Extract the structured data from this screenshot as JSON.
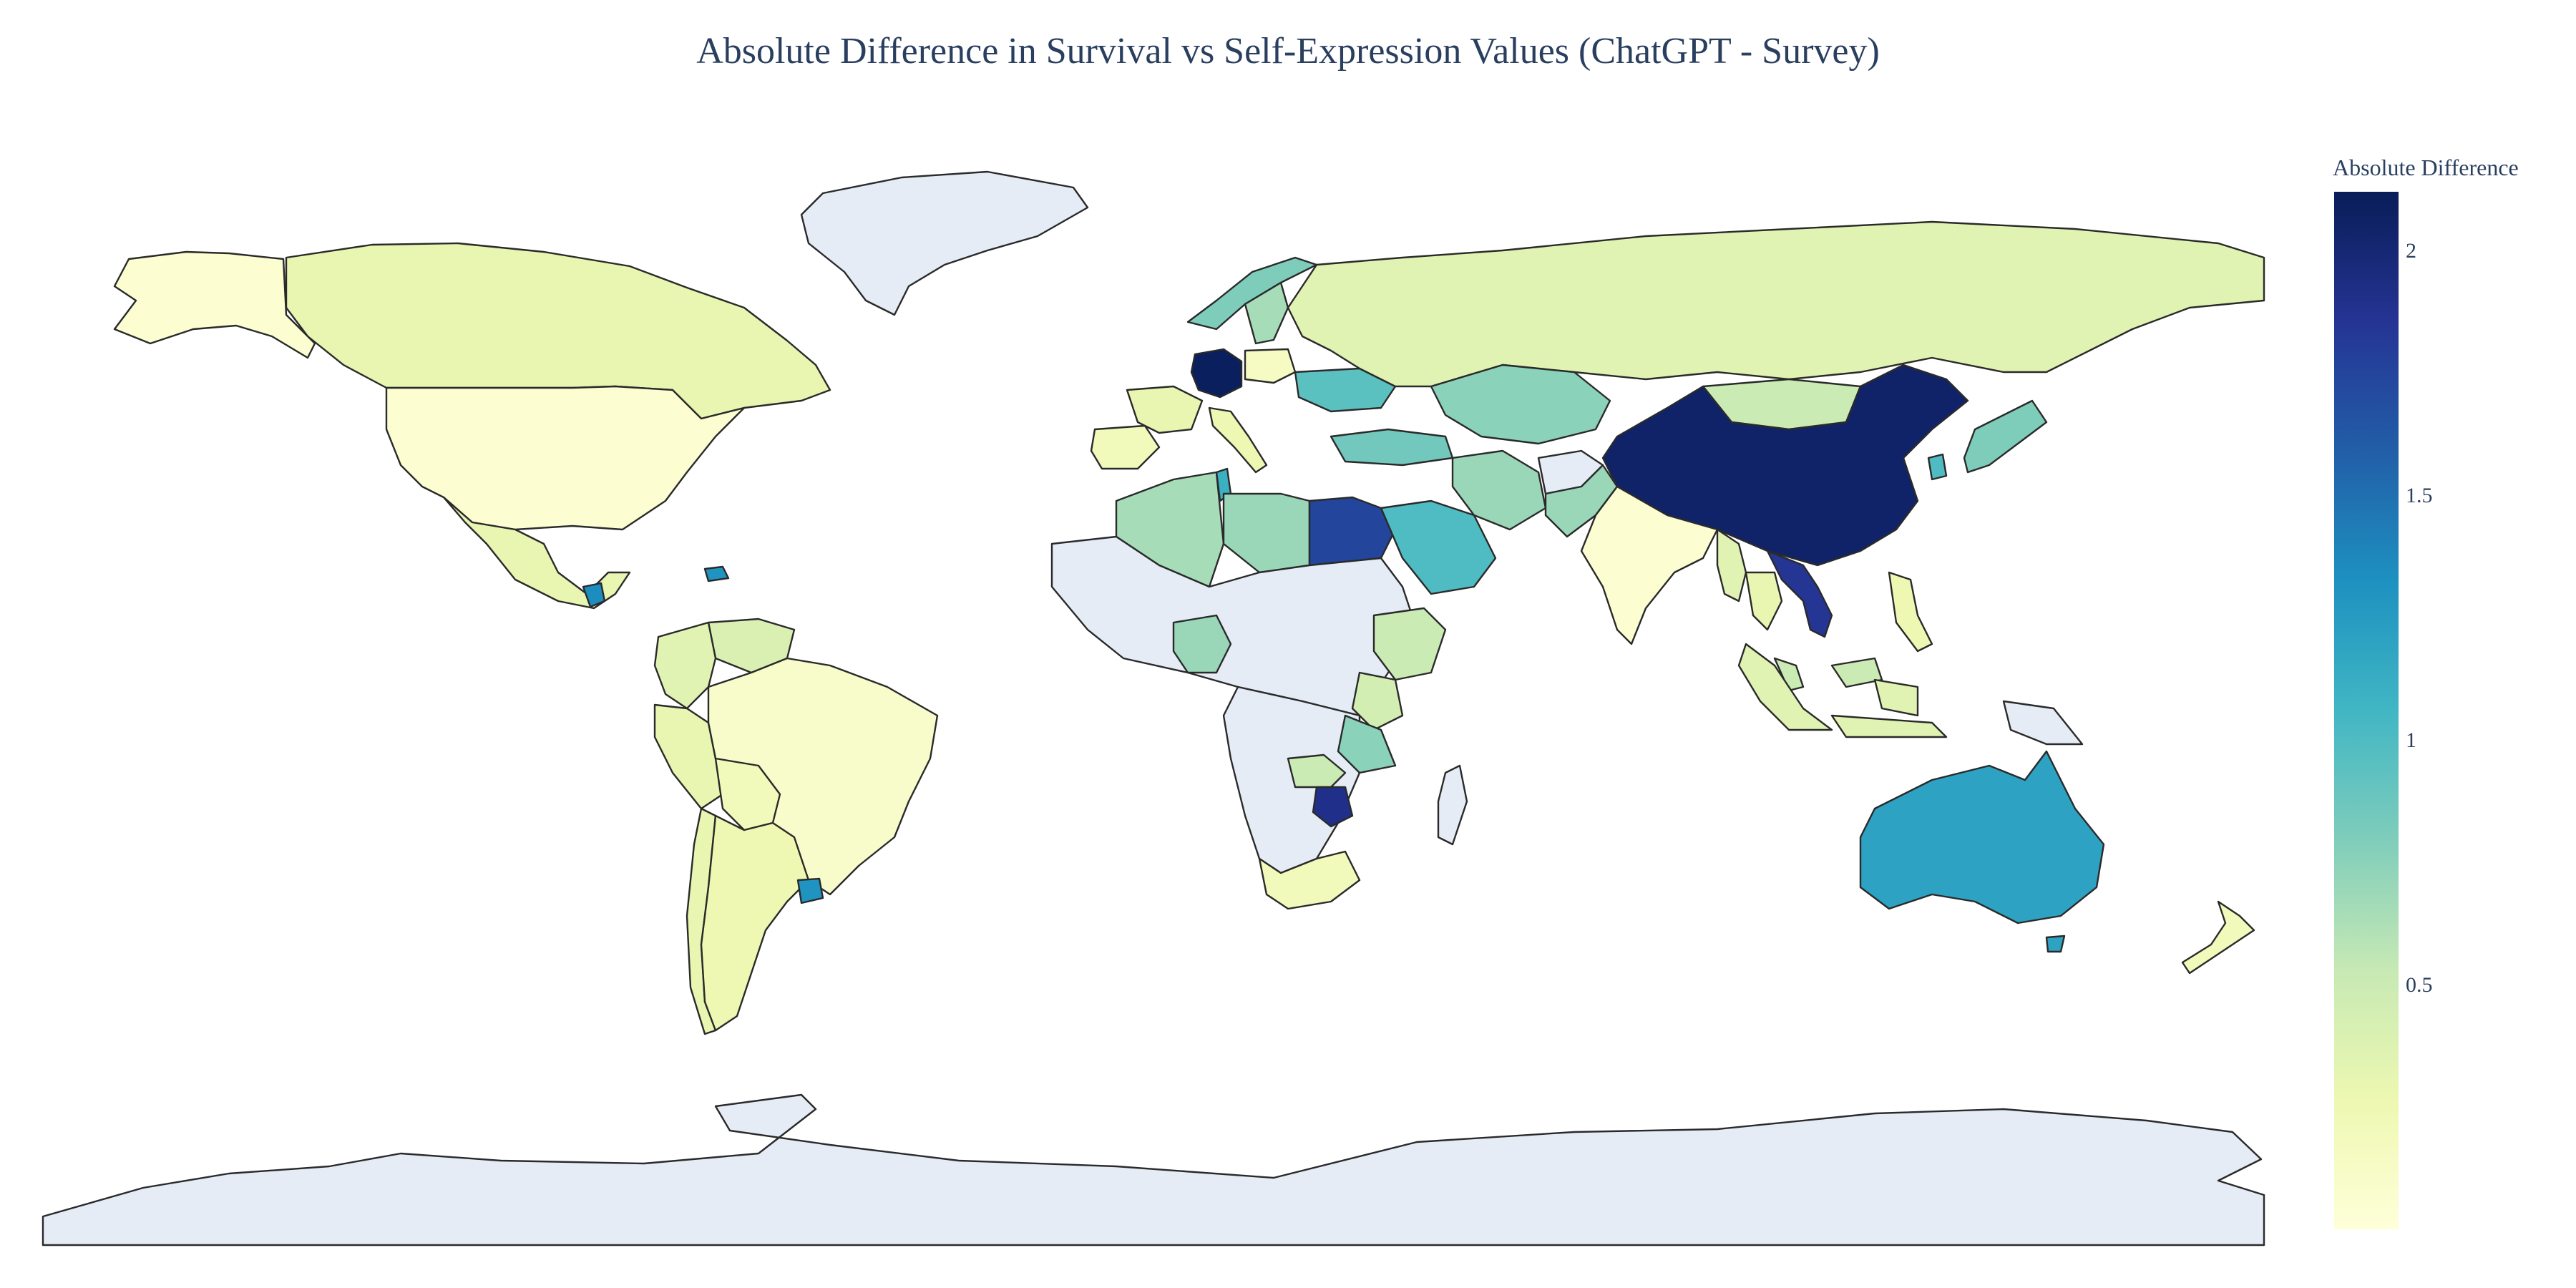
{
  "title": "Absolute Difference in Survival vs Self-Expression Values (ChatGPT - Survey)",
  "colorbar": {
    "title": "Absolute Difference",
    "min": 0.0,
    "max": 2.12,
    "ticks": [
      {
        "value": 0.5,
        "label": "0.5"
      },
      {
        "value": 1,
        "label": "1"
      },
      {
        "value": 1.5,
        "label": "1.5"
      },
      {
        "value": 2,
        "label": "2"
      }
    ],
    "scale_colors": [
      "#ffffd9",
      "#edf8b1",
      "#c7e9b4",
      "#7fcdbb",
      "#41b6c4",
      "#1d91c0",
      "#225ea8",
      "#253494",
      "#081d58"
    ],
    "no_data_color": "#e5ecf6"
  },
  "chart_data": {
    "type": "choropleth",
    "title": "Absolute Difference in Survival vs Self-Expression Values (ChatGPT - Survey)",
    "colorscale": "YlGnBu",
    "range": [
      0,
      2.12
    ],
    "no_data_color": "#e5ecf6",
    "countries": [
      {
        "name": "Germany",
        "value": 2.1
      },
      {
        "name": "China",
        "value": 2.05
      },
      {
        "name": "Zimbabwe",
        "value": 1.9
      },
      {
        "name": "Vietnam",
        "value": 1.85
      },
      {
        "name": "Egypt",
        "value": 1.75
      },
      {
        "name": "Uruguay",
        "value": 1.3
      },
      {
        "name": "Guatemala",
        "value": 1.35
      },
      {
        "name": "Dominican Republic",
        "value": 1.3
      },
      {
        "name": "Australia",
        "value": 1.2
      },
      {
        "name": "Tunisia",
        "value": 1.1
      },
      {
        "name": "Saudi Arabia",
        "value": 1.0
      },
      {
        "name": "South Korea",
        "value": 1.0
      },
      {
        "name": "Ukraine",
        "value": 0.95
      },
      {
        "name": "Turkey",
        "value": 0.85
      },
      {
        "name": "Japan",
        "value": 0.8
      },
      {
        "name": "Iran",
        "value": 0.7
      },
      {
        "name": "Kazakhstan",
        "value": 0.75
      },
      {
        "name": "Algeria",
        "value": 0.65
      },
      {
        "name": "Libya",
        "value": 0.7
      },
      {
        "name": "Nigeria",
        "value": 0.7
      },
      {
        "name": "Tanzania",
        "value": 0.75
      },
      {
        "name": "Norway",
        "value": 0.8
      },
      {
        "name": "Sweden",
        "value": 0.65
      },
      {
        "name": "Mongolia",
        "value": 0.5
      },
      {
        "name": "Ethiopia",
        "value": 0.5
      },
      {
        "name": "Kenya",
        "value": 0.45
      },
      {
        "name": "Zambia",
        "value": 0.5
      },
      {
        "name": "Russia",
        "value": 0.35
      },
      {
        "name": "Canada",
        "value": 0.3
      },
      {
        "name": "Mexico",
        "value": 0.3
      },
      {
        "name": "Colombia",
        "value": 0.35
      },
      {
        "name": "Peru",
        "value": 0.3
      },
      {
        "name": "Venezuela",
        "value": 0.4
      },
      {
        "name": "Argentina",
        "value": 0.25
      },
      {
        "name": "Chile",
        "value": 0.3
      },
      {
        "name": "Bolivia",
        "value": 0.2
      },
      {
        "name": "France",
        "value": 0.3
      },
      {
        "name": "Spain",
        "value": 0.2
      },
      {
        "name": "Italy",
        "value": 0.25
      },
      {
        "name": "Poland",
        "value": 0.15
      },
      {
        "name": "Indonesia",
        "value": 0.35
      },
      {
        "name": "Philippines",
        "value": 0.25
      },
      {
        "name": "Malaysia",
        "value": 0.5
      },
      {
        "name": "Thailand",
        "value": 0.3
      },
      {
        "name": "Myanmar",
        "value": 0.35
      },
      {
        "name": "Pakistan",
        "value": 0.7
      },
      {
        "name": "South Africa",
        "value": 0.2
      },
      {
        "name": "New Zealand",
        "value": 0.2
      },
      {
        "name": "Brazil",
        "value": 0.1
      },
      {
        "name": "United States",
        "value": 0.05
      },
      {
        "name": "India",
        "value": 0.05
      },
      {
        "name": "Greenland",
        "value": null
      },
      {
        "name": "Antarctica",
        "value": null
      },
      {
        "name": "Afghanistan",
        "value": null
      },
      {
        "name": "Madagascar",
        "value": null
      },
      {
        "name": "Papua New Guinea",
        "value": null
      }
    ]
  }
}
